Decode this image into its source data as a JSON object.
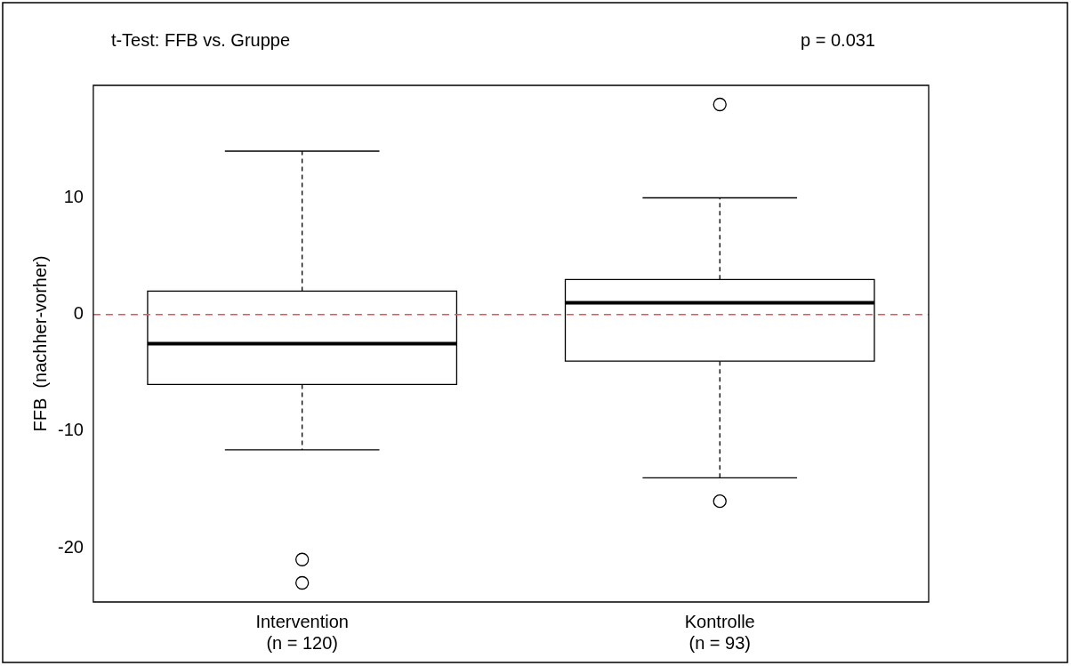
{
  "chart_data": {
    "type": "box",
    "title": "t-Test: FFB vs. Gruppe",
    "ylabel": "FFB  (nachher-vorher)",
    "categories": [
      "Intervention\n(n = 120)",
      "Kontrolle\n(n = 93)"
    ],
    "boxes": [
      {
        "low": -11.6,
        "q1": -6,
        "median": -2.5,
        "q3": 2,
        "high": 14,
        "outliers": [
          -21,
          -23
        ]
      },
      {
        "low": -14,
        "q1": -4,
        "median": 1,
        "q3": 3,
        "high": 10,
        "outliers": [
          18,
          -16
        ]
      }
    ],
    "ylim": [
      -24.64,
      19.64
    ],
    "yticks": [
      -20,
      -10,
      0,
      10
    ],
    "grid": false,
    "legend": false,
    "ref_lines": [
      {
        "axis": "y",
        "value": 0,
        "color": "#f05050",
        "line_style": "dashed"
      }
    ],
    "annotations": [
      "p = 0.031"
    ]
  }
}
